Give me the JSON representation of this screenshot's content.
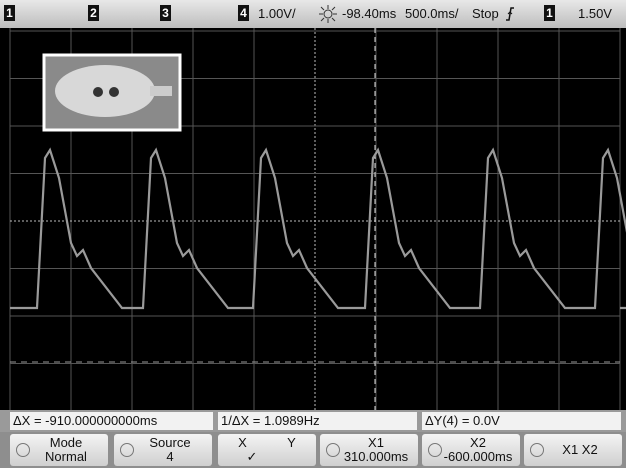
{
  "top_bar": {
    "channels": [
      "1",
      "2",
      "3",
      "4"
    ],
    "scale": "1.00V/",
    "delay": "-98.40ms",
    "timebase": "500.0ms/",
    "run_state": "Stop",
    "trigger_source": "1",
    "trigger_level": "1.50V"
  },
  "status": {
    "delta_x": "ΔX = -910.000000000ms",
    "inv_delta_x": "1/ΔX = 1.0989Hz",
    "delta_y": "ΔY(4) = 0.0V"
  },
  "softkeys": [
    {
      "lines": [
        "Mode",
        "Normal"
      ]
    },
    {
      "lines": [
        "Source",
        "4"
      ]
    },
    {
      "lines": [
        "X",
        "Y",
        "✓"
      ]
    },
    {
      "lines": [
        "X1",
        "310.000ms"
      ]
    },
    {
      "lines": [
        "X2",
        "-600.000ms"
      ]
    },
    {
      "lines": [
        "X1 X2"
      ]
    }
  ]
}
